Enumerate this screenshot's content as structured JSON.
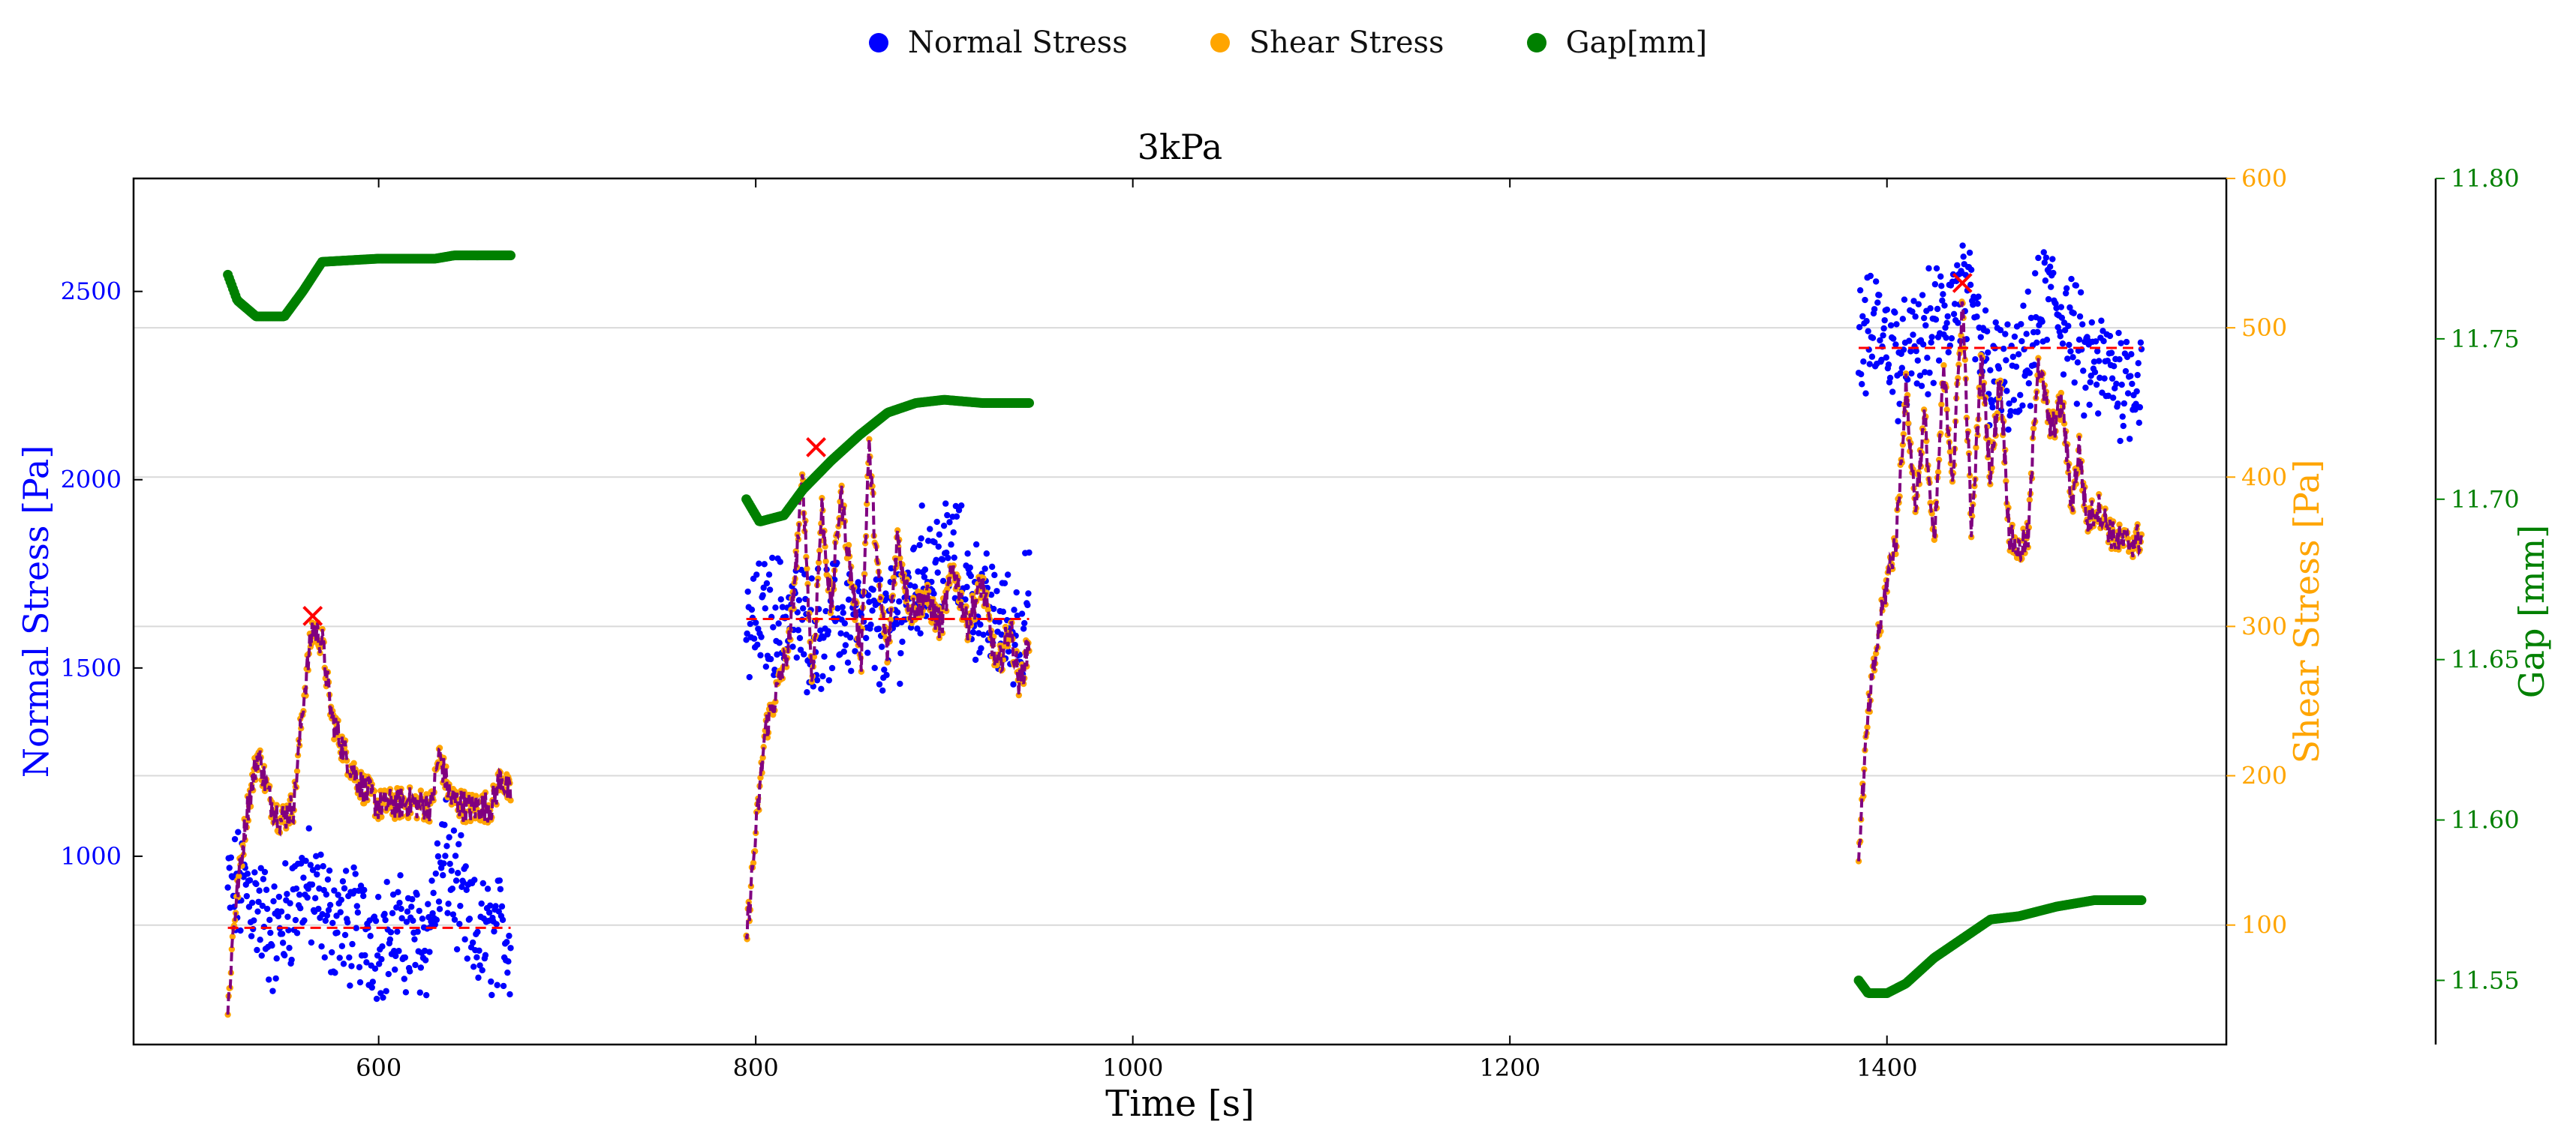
{
  "chart_data": {
    "type": "scatter",
    "title": "3kPa",
    "xlabel": "Time [s]",
    "ylabel_left": "Normal Stress [Pa]",
    "ylabel_right1": "Shear Stress [Pa]",
    "ylabel_right2": "Gap [mm]",
    "xlim": [
      470,
      1580
    ],
    "ylim_left": [
      500,
      2800
    ],
    "ylim_right1": [
      20,
      600
    ],
    "ylim_right2": [
      11.53,
      11.8
    ],
    "x_ticks": [
      600,
      800,
      1000,
      1200,
      1400
    ],
    "y_left_ticks": [
      1000,
      1500,
      2000,
      2500
    ],
    "y_right1_ticks": [
      100,
      200,
      300,
      400,
      500,
      600
    ],
    "y_right2_ticks": [
      11.55,
      11.6,
      11.65,
      11.7,
      11.75,
      11.8
    ],
    "grid": "horizontal (shear axis)",
    "legend": {
      "placement": "top-center",
      "entries": [
        {
          "label": "Normal Stress",
          "color": "#0000ff"
        },
        {
          "label": "Shear Stress",
          "color": "#ffa500"
        },
        {
          "label": "Gap[mm]",
          "color": "#008000"
        }
      ]
    },
    "colors": {
      "normal": "#0000ff",
      "shear": "#ffa500",
      "gap": "#008000",
      "shear_line": "#800080",
      "reference": "#ff0000",
      "axis": "#000000",
      "grid": "#d9d9d9"
    },
    "segments": [
      {
        "x_range": [
          520,
          670
        ],
        "normal_mean": 810,
        "shear_peak": {
          "x": 565,
          "y": 307
        },
        "normal_profile": [
          [
            520,
            900
          ],
          [
            530,
            920
          ],
          [
            545,
            780
          ],
          [
            560,
            930
          ],
          [
            575,
            830
          ],
          [
            600,
            790
          ],
          [
            625,
            780
          ],
          [
            635,
            1000
          ],
          [
            650,
            780
          ],
          [
            670,
            790
          ]
        ],
        "shear_profile": [
          [
            520,
            40
          ],
          [
            523,
            100
          ],
          [
            530,
            175
          ],
          [
            536,
            215
          ],
          [
            542,
            185
          ],
          [
            548,
            170
          ],
          [
            555,
            180
          ],
          [
            560,
            250
          ],
          [
            565,
            300
          ],
          [
            570,
            290
          ],
          [
            575,
            240
          ],
          [
            582,
            215
          ],
          [
            590,
            195
          ],
          [
            600,
            180
          ],
          [
            615,
            182
          ],
          [
            628,
            180
          ],
          [
            632,
            215
          ],
          [
            638,
            185
          ],
          [
            648,
            178
          ],
          [
            660,
            180
          ],
          [
            665,
            200
          ],
          [
            670,
            185
          ]
        ],
        "gap_profile": [
          [
            520,
            11.77
          ],
          [
            525,
            11.762
          ],
          [
            535,
            11.757
          ],
          [
            550,
            11.757
          ],
          [
            560,
            11.765
          ],
          [
            570,
            11.774
          ],
          [
            600,
            11.775
          ],
          [
            630,
            11.775
          ],
          [
            640,
            11.776
          ],
          [
            670,
            11.776
          ]
        ]
      },
      {
        "x_range": [
          795,
          945
        ],
        "normal_mean": 1630,
        "shear_peak": {
          "x": 832,
          "y": 420
        },
        "normal_profile": [
          [
            795,
            1600
          ],
          [
            810,
            1650
          ],
          [
            830,
            1600
          ],
          [
            850,
            1640
          ],
          [
            870,
            1580
          ],
          [
            890,
            1780
          ],
          [
            905,
            1800
          ],
          [
            920,
            1650
          ],
          [
            935,
            1600
          ],
          [
            945,
            1650
          ]
        ],
        "shear_profile": [
          [
            795,
            90
          ],
          [
            800,
            160
          ],
          [
            805,
            230
          ],
          [
            812,
            260
          ],
          [
            818,
            290
          ],
          [
            825,
            400
          ],
          [
            830,
            260
          ],
          [
            835,
            380
          ],
          [
            840,
            310
          ],
          [
            845,
            390
          ],
          [
            850,
            340
          ],
          [
            856,
            280
          ],
          [
            860,
            420
          ],
          [
            865,
            330
          ],
          [
            870,
            280
          ],
          [
            875,
            360
          ],
          [
            882,
            310
          ],
          [
            890,
            320
          ],
          [
            898,
            300
          ],
          [
            905,
            340
          ],
          [
            912,
            300
          ],
          [
            920,
            330
          ],
          [
            928,
            270
          ],
          [
            935,
            300
          ],
          [
            940,
            260
          ],
          [
            945,
            290
          ]
        ],
        "gap_profile": [
          [
            795,
            11.7
          ],
          [
            802,
            11.693
          ],
          [
            815,
            11.695
          ],
          [
            825,
            11.703
          ],
          [
            840,
            11.712
          ],
          [
            855,
            11.72
          ],
          [
            870,
            11.727
          ],
          [
            885,
            11.73
          ],
          [
            900,
            11.731
          ],
          [
            920,
            11.73
          ],
          [
            945,
            11.73
          ]
        ]
      },
      {
        "x_range": [
          1385,
          1535
        ],
        "normal_mean": 2350,
        "shear_peak": {
          "x": 1440,
          "y": 530
        },
        "normal_profile": [
          [
            1385,
            2360
          ],
          [
            1395,
            2400
          ],
          [
            1410,
            2300
          ],
          [
            1425,
            2400
          ],
          [
            1440,
            2500
          ],
          [
            1455,
            2280
          ],
          [
            1470,
            2250
          ],
          [
            1485,
            2500
          ],
          [
            1495,
            2420
          ],
          [
            1505,
            2300
          ],
          [
            1520,
            2280
          ],
          [
            1535,
            2270
          ]
        ],
        "shear_profile": [
          [
            1385,
            150
          ],
          [
            1390,
            240
          ],
          [
            1395,
            290
          ],
          [
            1400,
            330
          ],
          [
            1405,
            360
          ],
          [
            1410,
            460
          ],
          [
            1415,
            380
          ],
          [
            1420,
            440
          ],
          [
            1425,
            350
          ],
          [
            1430,
            470
          ],
          [
            1435,
            400
          ],
          [
            1440,
            520
          ],
          [
            1445,
            360
          ],
          [
            1450,
            480
          ],
          [
            1455,
            400
          ],
          [
            1460,
            470
          ],
          [
            1465,
            360
          ],
          [
            1470,
            350
          ],
          [
            1475,
            360
          ],
          [
            1480,
            480
          ],
          [
            1487,
            430
          ],
          [
            1493,
            450
          ],
          [
            1498,
            380
          ],
          [
            1502,
            420
          ],
          [
            1506,
            370
          ],
          [
            1512,
            380
          ],
          [
            1520,
            360
          ],
          [
            1528,
            355
          ],
          [
            1535,
            360
          ]
        ],
        "gap_profile": [
          [
            1385,
            11.55
          ],
          [
            1390,
            11.546
          ],
          [
            1400,
            11.546
          ],
          [
            1410,
            11.549
          ],
          [
            1425,
            11.557
          ],
          [
            1440,
            11.563
          ],
          [
            1455,
            11.569
          ],
          [
            1470,
            11.57
          ],
          [
            1490,
            11.573
          ],
          [
            1510,
            11.575
          ],
          [
            1535,
            11.575
          ]
        ]
      }
    ]
  }
}
